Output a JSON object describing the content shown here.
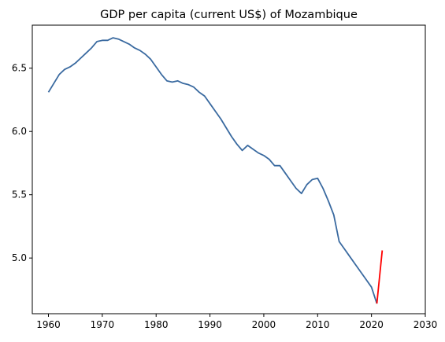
{
  "chart_data": {
    "type": "line",
    "title": "GDP per capita (current US$) of Mozambique",
    "xlabel": "",
    "ylabel": "",
    "xlim": [
      1957,
      2030
    ],
    "ylim": [
      4.56,
      6.84
    ],
    "xticks": [
      1960,
      1970,
      1980,
      1990,
      2000,
      2010,
      2020,
      2030
    ],
    "yticks": [
      5.0,
      5.5,
      6.0,
      6.5
    ],
    "xtick_labels": [
      "1960",
      "1970",
      "1980",
      "1990",
      "2000",
      "2010",
      "2020",
      "2030"
    ],
    "ytick_labels": [
      "5.0",
      "5.5",
      "6.0",
      "6.5"
    ],
    "grid": false,
    "series": [
      {
        "color": "#3a6aa0",
        "x": [
          1960,
          1961,
          1962,
          1963,
          1964,
          1965,
          1966,
          1967,
          1968,
          1969,
          1970,
          1971,
          1972,
          1973,
          1974,
          1975,
          1976,
          1977,
          1978,
          1979,
          1980,
          1981,
          1982,
          1983,
          1984,
          1985,
          1986,
          1987,
          1988,
          1989,
          1990,
          1991,
          1992,
          1993,
          1994,
          1995,
          1996,
          1997,
          1998,
          1999,
          2000,
          2001,
          2002,
          2003,
          2004,
          2005,
          2006,
          2007,
          2008,
          2009,
          2010,
          2011,
          2012,
          2013,
          2014,
          2015,
          2016,
          2017,
          2018,
          2019,
          2020,
          2021
        ],
        "y": [
          6.31,
          6.38,
          6.45,
          6.49,
          6.51,
          6.54,
          6.58,
          6.62,
          6.66,
          6.71,
          6.72,
          6.72,
          6.74,
          6.73,
          6.71,
          6.69,
          6.66,
          6.64,
          6.61,
          6.57,
          6.51,
          6.45,
          6.4,
          6.39,
          6.4,
          6.38,
          6.37,
          6.35,
          6.31,
          6.28,
          6.22,
          6.16,
          6.1,
          6.03,
          5.96,
          5.9,
          5.85,
          5.89,
          5.86,
          5.83,
          5.81,
          5.78,
          5.73,
          5.73,
          5.67,
          5.61,
          5.55,
          5.51,
          5.58,
          5.62,
          5.63,
          5.55,
          5.45,
          5.34,
          5.13,
          5.07,
          5.01,
          4.95,
          4.89,
          4.83,
          4.77,
          4.64
        ]
      },
      {
        "color": "#ff0000",
        "x": [
          2021,
          2022
        ],
        "y": [
          4.64,
          5.06
        ]
      }
    ]
  }
}
